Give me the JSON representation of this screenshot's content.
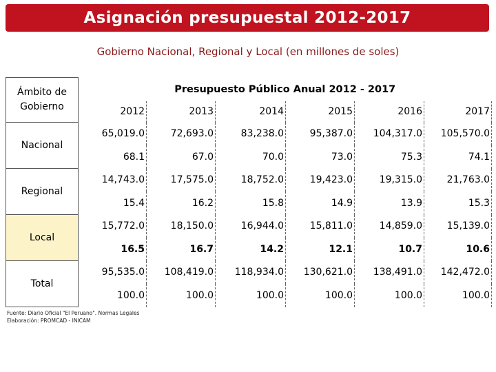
{
  "header": {
    "title": "Asignación presupuestal 2012-2017",
    "subtitle": "Gobierno Nacional, Regional y Local (en millones de soles)"
  },
  "table": {
    "ambito_label": "Ámbito de Gobierno",
    "group_header": "Presupuesto Público Anual 2012 - 2017",
    "years": [
      "2012",
      "2013",
      "2014",
      "2015",
      "2016",
      "2017"
    ],
    "rows": [
      {
        "label": "Nacional",
        "amounts": [
          "65,019.0",
          "72,693.0",
          "83,238.0",
          "95,387.0",
          "104,317.0",
          "105,570.0"
        ],
        "percents": [
          "68.1",
          "67.0",
          "70.0",
          "73.0",
          "75.3",
          "74.1"
        ]
      },
      {
        "label": "Regional",
        "amounts": [
          "14,743.0",
          "17,575.0",
          "18,752.0",
          "19,423.0",
          "19,315.0",
          "21,763.0"
        ],
        "percents": [
          "15.4",
          "16.2",
          "15.8",
          "14.9",
          "13.9",
          "15.3"
        ]
      },
      {
        "label": "Local",
        "amounts": [
          "15,772.0",
          "18,150.0",
          "16,944.0",
          "15,811.0",
          "14,859.0",
          "15,139.0"
        ],
        "percents": [
          "16.5",
          "16.7",
          "14.2",
          "12.1",
          "10.7",
          "10.6"
        ]
      },
      {
        "label": "Total",
        "amounts": [
          "95,535.0",
          "108,419.0",
          "118,934.0",
          "130,621.0",
          "138,491.0",
          "142,472.0"
        ],
        "percents": [
          "100.0",
          "100.0",
          "100.0",
          "100.0",
          "100.0",
          "100.0"
        ]
      }
    ]
  },
  "footnote": {
    "source": "Fuente: Diario Oficial \"El Peruano\". Normas Legales",
    "prepared_by": "Elaboración: PROMCAD - INICAM"
  },
  "colors": {
    "banner": "#c0121f",
    "subtitle": "#8b1a1a",
    "local_fill": "#fdf3c9"
  }
}
